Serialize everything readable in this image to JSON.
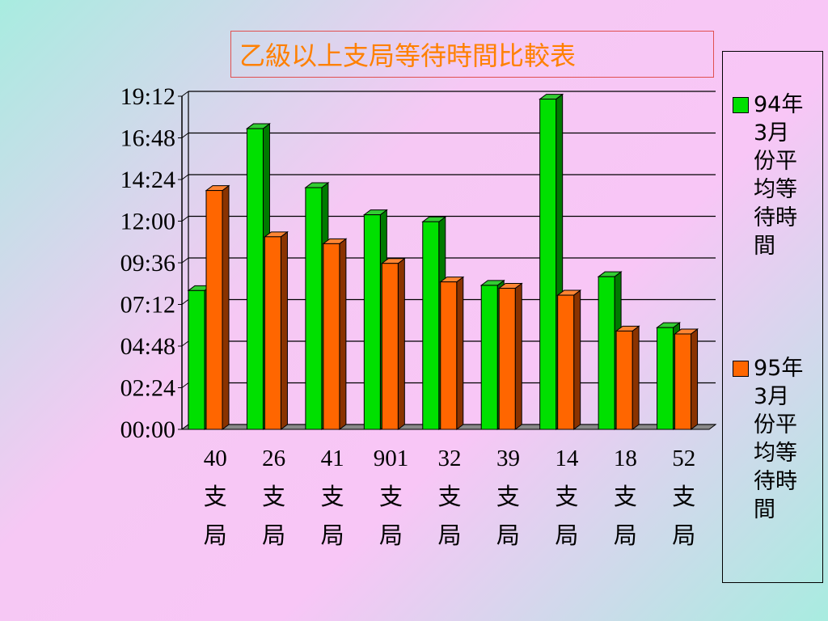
{
  "title": "乙級以上支局等待時間比較表",
  "chart_data": {
    "type": "bar",
    "title": "乙級以上支局等待時間比較表",
    "categories": [
      "40支局",
      "26支局",
      "41支局",
      "901支局",
      "32支局",
      "39支局",
      "14支局",
      "18支局",
      "52支局"
    ],
    "category_lines": [
      [
        "40",
        "支",
        "局"
      ],
      [
        "26",
        "支",
        "局"
      ],
      [
        "41",
        "支",
        "局"
      ],
      [
        "901",
        "支",
        "局"
      ],
      [
        "32",
        "支",
        "局"
      ],
      [
        "39",
        "支",
        "局"
      ],
      [
        "14",
        "支",
        "局"
      ],
      [
        "18",
        "支",
        "局"
      ],
      [
        "52",
        "支",
        "局"
      ]
    ],
    "y_ticks": [
      "00:00",
      "02:24",
      "04:48",
      "07:12",
      "09:36",
      "12:00",
      "14:24",
      "16:48",
      "19:12"
    ],
    "y_unit": "minutes",
    "ylim": [
      0,
      1152
    ],
    "series": [
      {
        "name": "94年3月份平均等待時間",
        "color": "#00e000",
        "top_color": "#33cc33",
        "side_color": "#007a00",
        "values": [
          480,
          1040,
          836,
          742,
          718,
          498,
          1142,
          528,
          352
        ]
      },
      {
        "name": "95年3月份平均等待時間",
        "color": "#ff6600",
        "top_color": "#ff8533",
        "side_color": "#8a3300",
        "values": [
          826,
          666,
          642,
          574,
          510,
          488,
          464,
          340,
          330
        ]
      }
    ],
    "grid": true,
    "legend_position": "right"
  }
}
